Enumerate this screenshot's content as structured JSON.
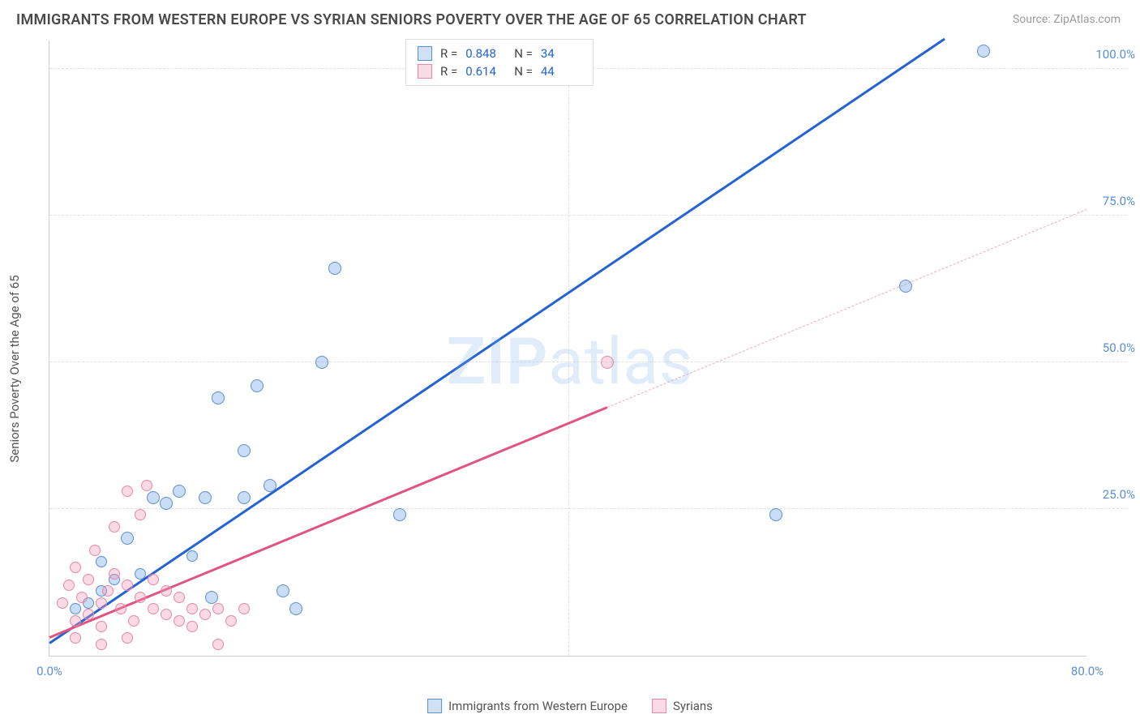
{
  "title": "IMMIGRANTS FROM WESTERN EUROPE VS SYRIAN SENIORS POVERTY OVER THE AGE OF 65 CORRELATION CHART",
  "source": "Source: ZipAtlas.com",
  "y_axis_label": "Seniors Poverty Over the Age of 65",
  "watermark": {
    "bold": "ZIP",
    "rest": "atlas"
  },
  "chart": {
    "type": "scatter",
    "xlim": [
      0,
      80
    ],
    "ylim": [
      0,
      105
    ],
    "x_ticks": [
      {
        "v": 0,
        "label": "0.0%"
      },
      {
        "v": 80,
        "label": "80.0%"
      }
    ],
    "y_ticks": [
      {
        "v": 25,
        "label": "25.0%"
      },
      {
        "v": 50,
        "label": "50.0%"
      },
      {
        "v": 75,
        "label": "75.0%"
      },
      {
        "v": 100,
        "label": "100.0%"
      }
    ],
    "grid_v": [
      40
    ],
    "background_color": "#ffffff",
    "grid_color": "#e0e0e0",
    "series": [
      {
        "name": "Immigrants from Western Europe",
        "color_fill": "rgba(120,170,230,0.4)",
        "color_stroke": "#5a8fd4",
        "trend_color": "#2563d4",
        "R": "0.848",
        "N": "34",
        "trend": {
          "x1": 0,
          "y1": 2,
          "x2": 69,
          "y2": 105,
          "dash_from_x": null
        },
        "points": [
          {
            "x": 2,
            "y": 8,
            "r": 7
          },
          {
            "x": 3,
            "y": 9,
            "r": 7
          },
          {
            "x": 4,
            "y": 11,
            "r": 7
          },
          {
            "x": 4,
            "y": 16,
            "r": 7
          },
          {
            "x": 5,
            "y": 13,
            "r": 7
          },
          {
            "x": 6,
            "y": 20,
            "r": 8
          },
          {
            "x": 7,
            "y": 14,
            "r": 7
          },
          {
            "x": 8,
            "y": 27,
            "r": 8
          },
          {
            "x": 9,
            "y": 26,
            "r": 8
          },
          {
            "x": 10,
            "y": 28,
            "r": 8
          },
          {
            "x": 11,
            "y": 17,
            "r": 7
          },
          {
            "x": 12,
            "y": 27,
            "r": 8
          },
          {
            "x": 12.5,
            "y": 10,
            "r": 8
          },
          {
            "x": 13,
            "y": 44,
            "r": 8
          },
          {
            "x": 15,
            "y": 27,
            "r": 8
          },
          {
            "x": 15,
            "y": 35,
            "r": 8
          },
          {
            "x": 16,
            "y": 46,
            "r": 8
          },
          {
            "x": 17,
            "y": 29,
            "r": 8
          },
          {
            "x": 18,
            "y": 11,
            "r": 8
          },
          {
            "x": 19,
            "y": 8,
            "r": 8
          },
          {
            "x": 21,
            "y": 50,
            "r": 8
          },
          {
            "x": 22,
            "y": 66,
            "r": 8
          },
          {
            "x": 27,
            "y": 24,
            "r": 8
          },
          {
            "x": 40,
            "y": 103,
            "r": 8
          },
          {
            "x": 56,
            "y": 24,
            "r": 8
          },
          {
            "x": 66,
            "y": 63,
            "r": 8
          },
          {
            "x": 72,
            "y": 103,
            "r": 8
          }
        ]
      },
      {
        "name": "Syrians",
        "color_fill": "rgba(240,150,180,0.35)",
        "color_stroke": "#e888a8",
        "trend_color": "#e05580",
        "R": "0.614",
        "N": "44",
        "trend": {
          "x1": 0,
          "y1": 3,
          "x2": 80,
          "y2": 76,
          "dash_from_x": 43
        },
        "points": [
          {
            "x": 1,
            "y": 9,
            "r": 7
          },
          {
            "x": 1.5,
            "y": 12,
            "r": 7
          },
          {
            "x": 2,
            "y": 6,
            "r": 7
          },
          {
            "x": 2,
            "y": 15,
            "r": 7
          },
          {
            "x": 2.5,
            "y": 10,
            "r": 7
          },
          {
            "x": 3,
            "y": 7,
            "r": 7
          },
          {
            "x": 3,
            "y": 13,
            "r": 7
          },
          {
            "x": 3.5,
            "y": 18,
            "r": 7
          },
          {
            "x": 4,
            "y": 9,
            "r": 7
          },
          {
            "x": 4,
            "y": 5,
            "r": 7
          },
          {
            "x": 4.5,
            "y": 11,
            "r": 7
          },
          {
            "x": 5,
            "y": 14,
            "r": 7
          },
          {
            "x": 5,
            "y": 22,
            "r": 7
          },
          {
            "x": 5.5,
            "y": 8,
            "r": 7
          },
          {
            "x": 6,
            "y": 12,
            "r": 7
          },
          {
            "x": 6,
            "y": 28,
            "r": 7
          },
          {
            "x": 6.5,
            "y": 6,
            "r": 7
          },
          {
            "x": 7,
            "y": 10,
            "r": 7
          },
          {
            "x": 7,
            "y": 24,
            "r": 7
          },
          {
            "x": 7.5,
            "y": 29,
            "r": 7
          },
          {
            "x": 8,
            "y": 8,
            "r": 7
          },
          {
            "x": 8,
            "y": 13,
            "r": 7
          },
          {
            "x": 9,
            "y": 7,
            "r": 7
          },
          {
            "x": 9,
            "y": 11,
            "r": 7
          },
          {
            "x": 10,
            "y": 6,
            "r": 7
          },
          {
            "x": 10,
            "y": 10,
            "r": 7
          },
          {
            "x": 11,
            "y": 8,
            "r": 7
          },
          {
            "x": 11,
            "y": 5,
            "r": 7
          },
          {
            "x": 12,
            "y": 7,
            "r": 7
          },
          {
            "x": 13,
            "y": 2,
            "r": 7
          },
          {
            "x": 13,
            "y": 8,
            "r": 7
          },
          {
            "x": 14,
            "y": 6,
            "r": 7
          },
          {
            "x": 15,
            "y": 8,
            "r": 7
          },
          {
            "x": 4,
            "y": 2,
            "r": 7
          },
          {
            "x": 6,
            "y": 3,
            "r": 7
          },
          {
            "x": 2,
            "y": 3,
            "r": 7
          },
          {
            "x": 43,
            "y": 50,
            "r": 8
          }
        ]
      }
    ]
  },
  "legend_bottom": [
    {
      "swatch": "blue",
      "label": "Immigrants from Western Europe"
    },
    {
      "swatch": "pink",
      "label": "Syrians"
    }
  ]
}
